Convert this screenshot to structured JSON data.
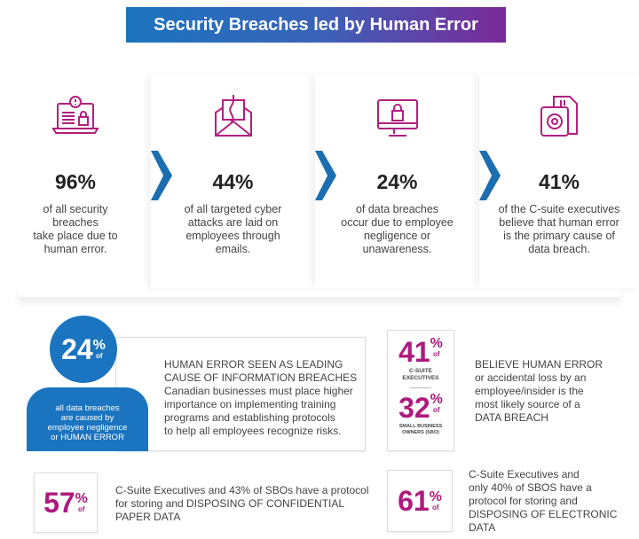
{
  "title": "Security Breaches led by Human Error",
  "colors": {
    "blue": "#1b74bf",
    "purple": "#7b2a98",
    "magenta": "#ad1a7d"
  },
  "stats": [
    {
      "icon": "laptop-lock-icon",
      "percent": "96%",
      "lines": [
        "of all security",
        "breaches",
        "take place due to",
        "human error."
      ]
    },
    {
      "icon": "envelope-hook-icon",
      "percent": "44%",
      "lines": [
        "of all targeted cyber",
        "attacks are laid on",
        "employees through",
        "emails."
      ]
    },
    {
      "icon": "monitor-lock-icon",
      "percent": "24%",
      "lines": [
        "of data breaches",
        "occur due to employee",
        "negligence or",
        "unawareness."
      ]
    },
    {
      "icon": "document-eye-icon",
      "percent": "41%",
      "lines": [
        "of the C-suite executives",
        "believe that human error",
        "is the primary cause of",
        "data breach."
      ]
    }
  ],
  "leading": {
    "number": "24",
    "pct": "%",
    "of": "of",
    "circle_text": [
      "all data breaches",
      "are caused by",
      "employee negligence",
      "or HUMAN ERROR"
    ],
    "lines": [
      "HUMAN ERROR SEEN AS LEADING",
      "CAUSE OF INFORMATION BREACHES",
      "Canadian businesses must place higher",
      "importance on implementing training",
      "programs and establishing protocols",
      "to help all employees recognize risks."
    ]
  },
  "believe": {
    "a_number": "41",
    "a_label": [
      "C-SUITE",
      "EXECUTIVES"
    ],
    "b_number": "32",
    "b_label": [
      "SMALL BUSINESS",
      "OWNERS (SBO)"
    ],
    "pct": "%",
    "of": "of",
    "lines": [
      "BELIEVE HUMAN ERROR",
      "or accidental loss by an",
      "employee/insider is the",
      "most likely source of a",
      "DATA BREACH"
    ]
  },
  "paper": {
    "number": "57",
    "pct": "%",
    "of": "of",
    "lines": [
      "C-Suite Executives and 43% of SBOs have a protocol",
      "for storing and DISPOSING OF CONFIDENTIAL",
      "PAPER DATA"
    ]
  },
  "electronic": {
    "number": "61",
    "pct": "%",
    "of": "of",
    "lines": [
      "C-Suite Executives and",
      "only 40% of SBOS have a",
      "protocol for storing and",
      "DISPOSING OF ELECTRONIC",
      "DATA"
    ]
  }
}
